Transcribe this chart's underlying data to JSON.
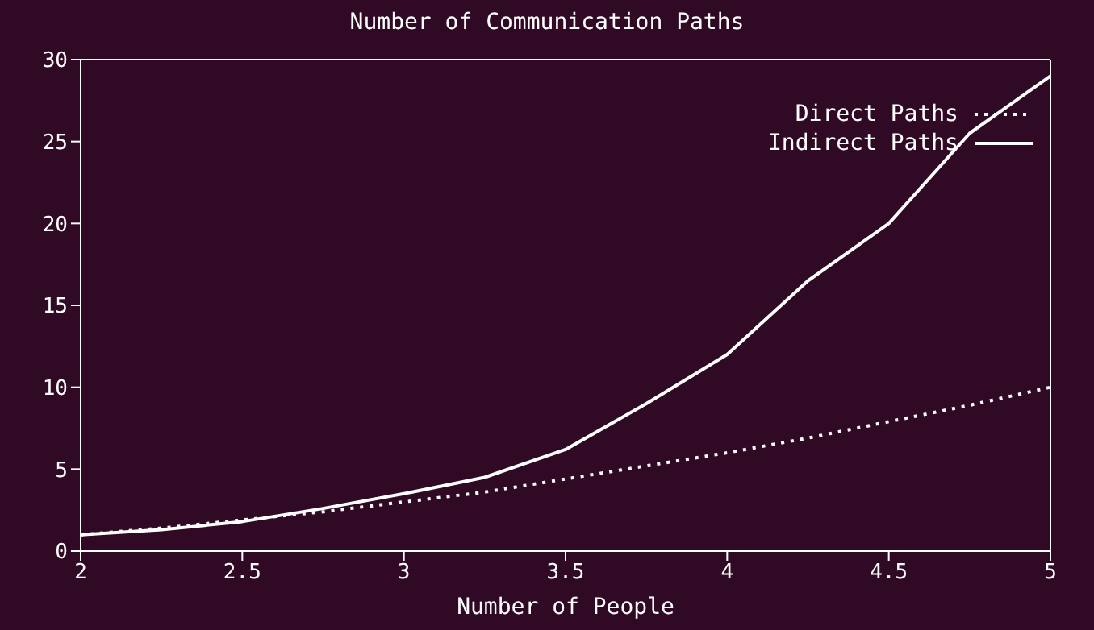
{
  "chart_data": {
    "type": "line",
    "title": "Number of Communication Paths",
    "xlabel": "Number of People",
    "xlim": [
      2,
      5
    ],
    "xticks": [
      2,
      2.5,
      3,
      3.5,
      4,
      4.5,
      5
    ],
    "ylim": [
      0,
      30
    ],
    "yticks": [
      0,
      5,
      10,
      15,
      20,
      25,
      30
    ],
    "x": [
      2,
      2.25,
      2.5,
      2.75,
      3,
      3.25,
      3.5,
      3.75,
      4,
      4.25,
      4.5,
      4.75,
      5
    ],
    "series": [
      {
        "name": "Direct Paths",
        "color": "#ffffff",
        "line_style": "dotted",
        "values": [
          1,
          1.4,
          1.9,
          2.4,
          3,
          3.6,
          4.4,
          5.2,
          6,
          6.9,
          7.9,
          8.9,
          10
        ]
      },
      {
        "name": "Indirect Paths",
        "color": "#ffffff",
        "line_style": "solid",
        "values": [
          1,
          1.3,
          1.8,
          2.6,
          3.5,
          4.5,
          6.2,
          9,
          12,
          16.5,
          20,
          25.5,
          29
        ]
      }
    ],
    "grid": false,
    "legend": "top right",
    "marker": "none"
  }
}
